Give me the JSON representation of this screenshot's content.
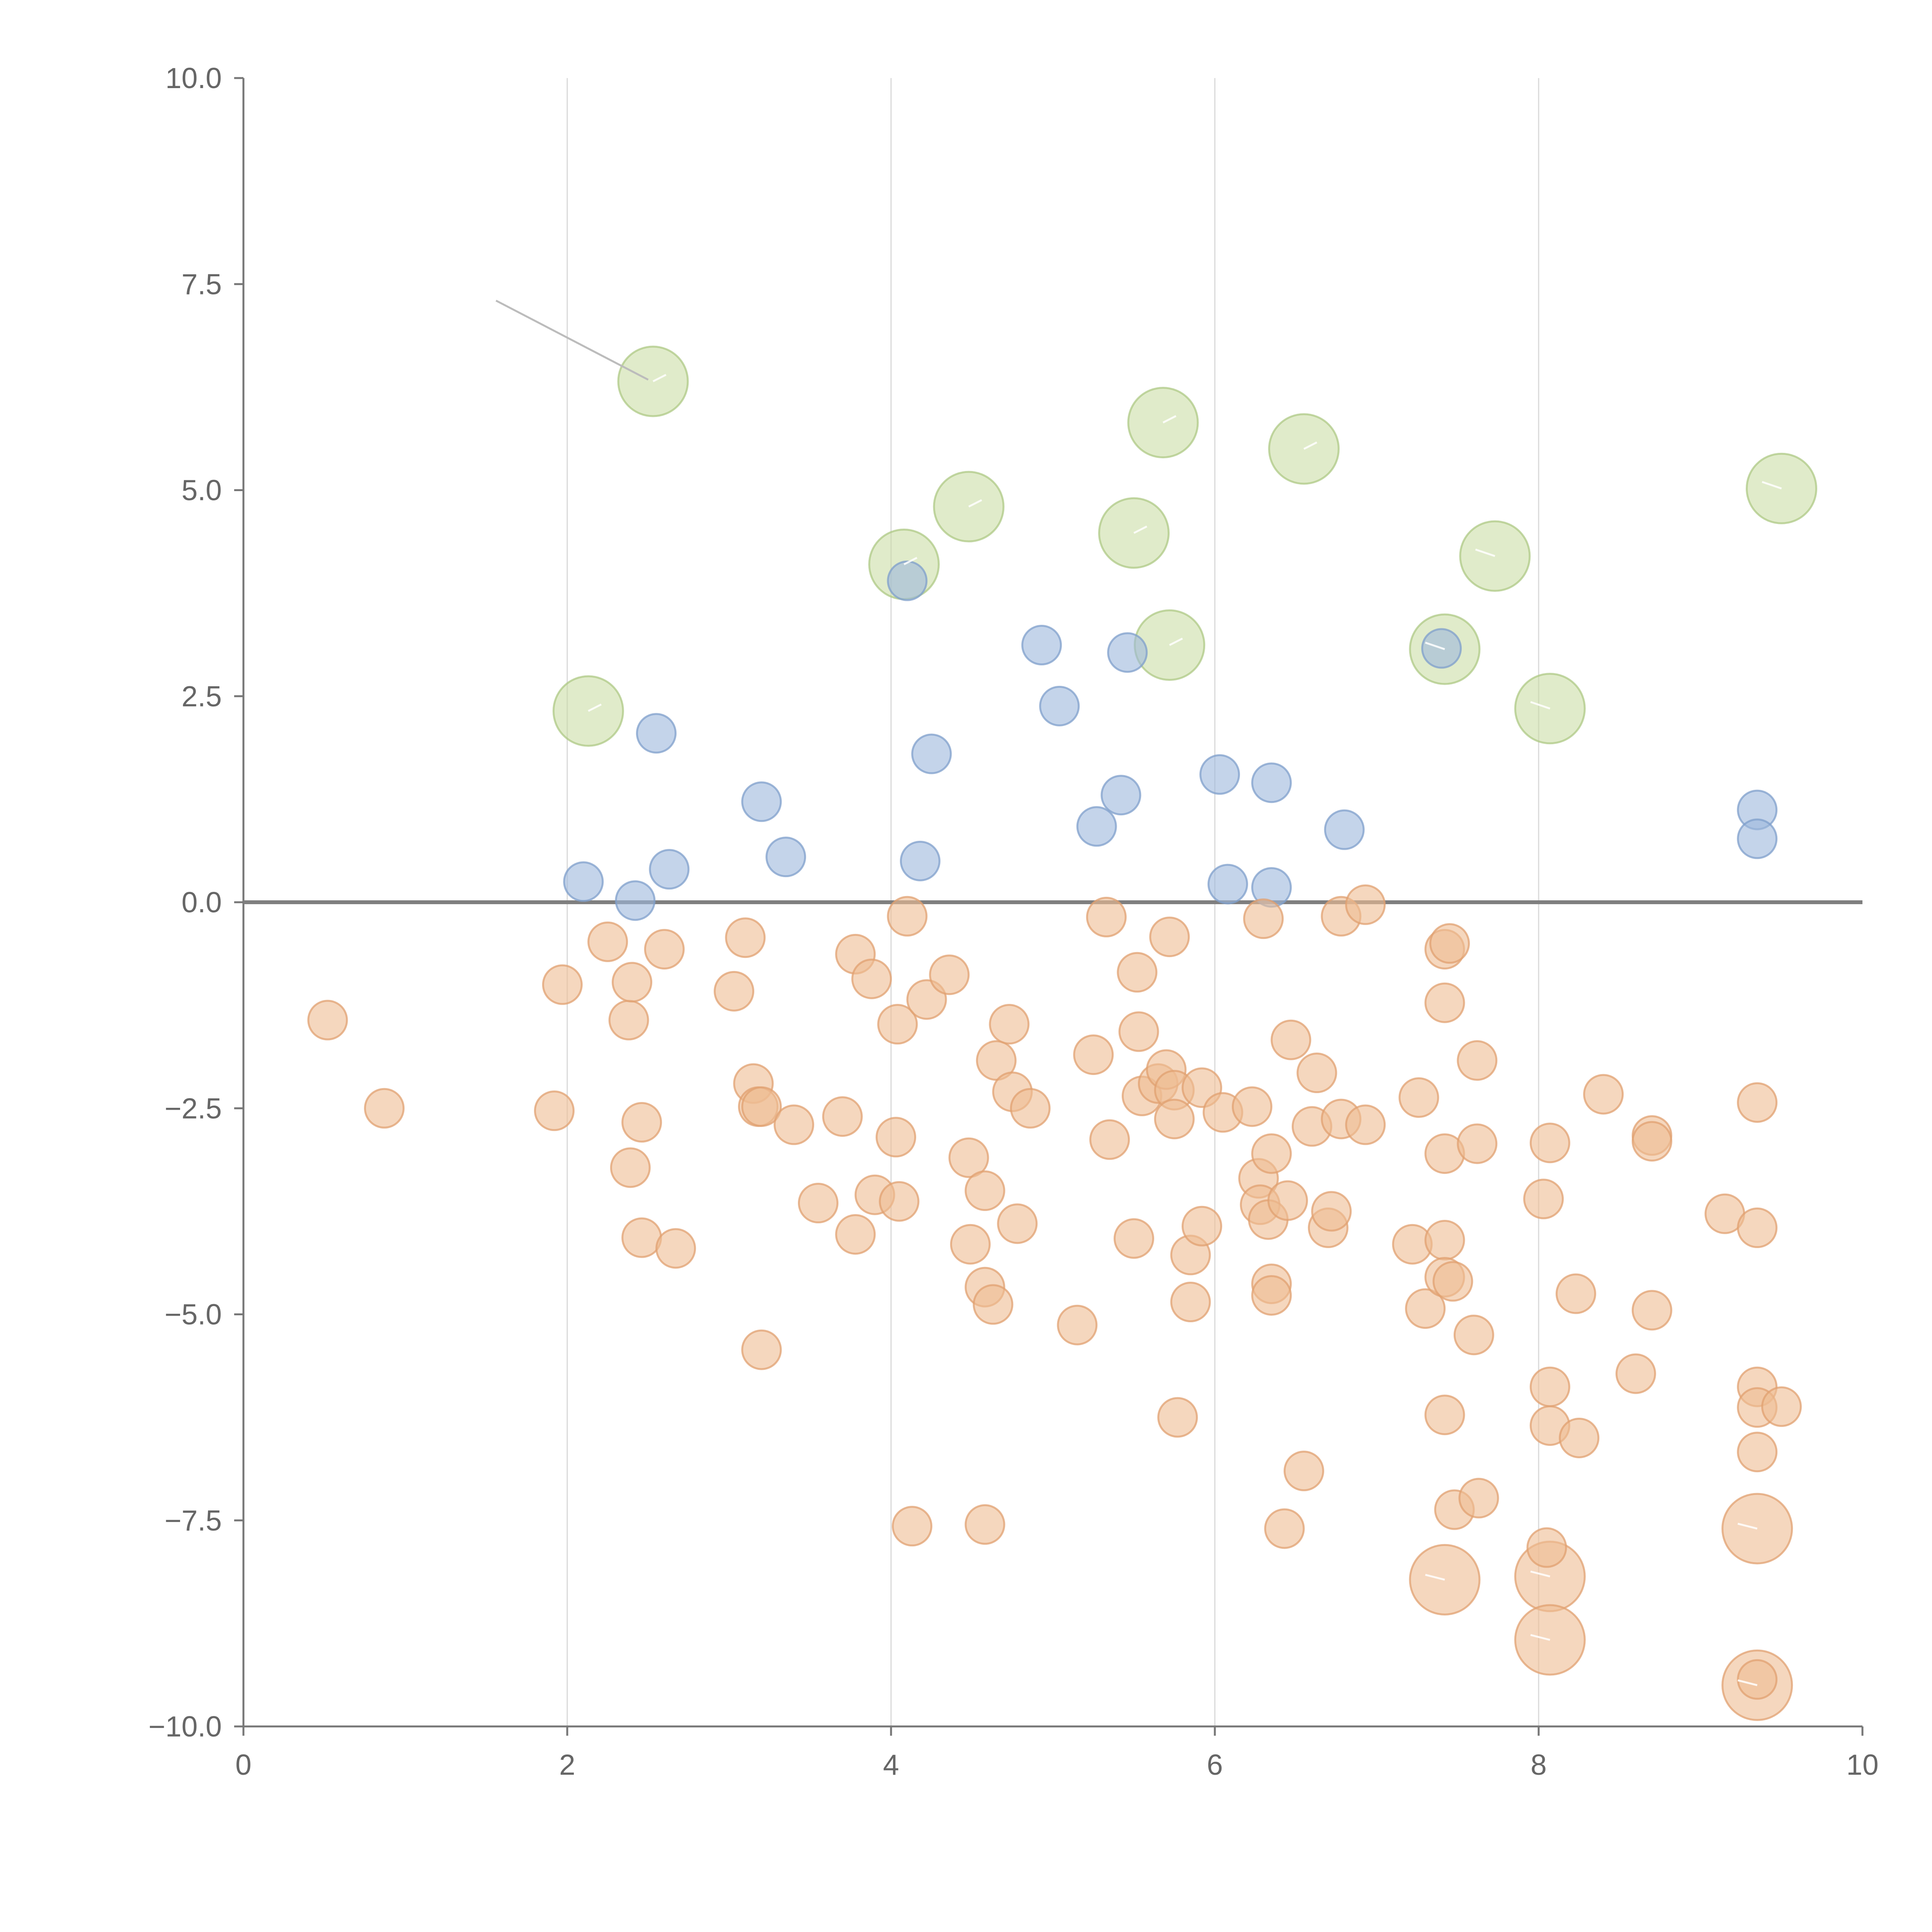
{
  "colors": {
    "positive": "#9db7dc",
    "positive_stroke": "#7f9fcb",
    "negative": "#efbc93",
    "negative_stroke": "#e0a070",
    "large": "#c8dca1",
    "large_stroke": "#a9c67f",
    "axis": "#777777",
    "grid": "#d9d9d9",
    "text": "#666666"
  },
  "chart_data": {
    "type": "scatter",
    "title": "",
    "xlabel": "",
    "ylabel": "",
    "xlim": [
      0,
      10
    ],
    "ylim": [
      -10,
      10
    ],
    "x_ticks": [
      "0",
      "2",
      "4",
      "6",
      "8",
      "10"
    ],
    "y_ticks": [
      "10.0",
      "7.5",
      "5.0",
      "2.5",
      "0.0",
      "−2.5",
      "−5.0",
      "−7.5",
      "−10.0"
    ],
    "grid": "vertical",
    "reference_line_y": 0,
    "series": [
      {
        "group": "positive",
        "size": "small",
        "points": [
          [
            2.1,
            0.25
          ],
          [
            2.42,
            0.02
          ],
          [
            2.55,
            2.05
          ],
          [
            2.63,
            0.4
          ],
          [
            3.2,
            1.22
          ],
          [
            3.35,
            0.55
          ],
          [
            4.1,
            3.9
          ],
          [
            4.18,
            0.5
          ],
          [
            4.25,
            1.8
          ],
          [
            4.93,
            3.12
          ],
          [
            5.04,
            2.38
          ],
          [
            5.27,
            0.92
          ],
          [
            5.42,
            1.3
          ],
          [
            5.46,
            3.03
          ],
          [
            6.03,
            1.55
          ],
          [
            6.08,
            0.22
          ],
          [
            6.35,
            1.45
          ],
          [
            6.35,
            0.18
          ],
          [
            6.8,
            0.88
          ],
          [
            7.4,
            3.08
          ],
          [
            9.35,
            1.12
          ],
          [
            9.35,
            0.77
          ]
        ]
      },
      {
        "group": "negative",
        "size": "small",
        "points": [
          [
            0.52,
            -1.43
          ],
          [
            0.87,
            -2.5
          ],
          [
            1.92,
            -2.53
          ],
          [
            1.97,
            -1.0
          ],
          [
            2.25,
            -0.48
          ],
          [
            2.38,
            -1.43
          ],
          [
            2.4,
            -0.97
          ],
          [
            2.39,
            -3.22
          ],
          [
            2.46,
            -2.67
          ],
          [
            2.46,
            -4.07
          ],
          [
            2.6,
            -0.57
          ],
          [
            2.67,
            -4.2
          ],
          [
            3.03,
            -1.08
          ],
          [
            3.1,
            -0.43
          ],
          [
            3.15,
            -2.2
          ],
          [
            3.18,
            -2.48
          ],
          [
            3.2,
            -2.48
          ],
          [
            3.2,
            -5.43
          ],
          [
            3.4,
            -2.7
          ],
          [
            3.55,
            -3.65
          ],
          [
            3.7,
            -2.6
          ],
          [
            3.78,
            -4.03
          ],
          [
            3.78,
            -0.63
          ],
          [
            3.88,
            -0.93
          ],
          [
            3.9,
            -3.55
          ],
          [
            4.03,
            -2.85
          ],
          [
            4.04,
            -1.48
          ],
          [
            4.05,
            -3.63
          ],
          [
            4.1,
            -0.17
          ],
          [
            4.13,
            -7.57
          ],
          [
            4.22,
            -1.18
          ],
          [
            4.36,
            -0.88
          ],
          [
            4.48,
            -3.1
          ],
          [
            4.49,
            -4.15
          ],
          [
            4.58,
            -4.67
          ],
          [
            4.58,
            -3.5
          ],
          [
            4.58,
            -7.55
          ],
          [
            4.63,
            -4.88
          ],
          [
            4.65,
            -1.92
          ],
          [
            4.73,
            -1.48
          ],
          [
            4.75,
            -2.3
          ],
          [
            4.78,
            -3.9
          ],
          [
            4.86,
            -2.5
          ],
          [
            5.15,
            -5.13
          ],
          [
            5.25,
            -1.85
          ],
          [
            5.33,
            -0.18
          ],
          [
            5.35,
            -2.88
          ],
          [
            5.5,
            -4.08
          ],
          [
            5.52,
            -0.85
          ],
          [
            5.53,
            -1.57
          ],
          [
            5.55,
            -2.35
          ],
          [
            5.65,
            -2.2
          ],
          [
            5.7,
            -2.03
          ],
          [
            5.72,
            -0.42
          ],
          [
            5.75,
            -2.28
          ],
          [
            5.75,
            -2.63
          ],
          [
            5.77,
            -6.25
          ],
          [
            5.85,
            -4.28
          ],
          [
            5.85,
            -4.85
          ],
          [
            5.92,
            -2.25
          ],
          [
            5.92,
            -3.93
          ],
          [
            6.05,
            -2.55
          ],
          [
            6.23,
            -2.48
          ],
          [
            6.27,
            -3.35
          ],
          [
            6.28,
            -3.67
          ],
          [
            6.3,
            -0.2
          ],
          [
            6.33,
            -3.85
          ],
          [
            6.35,
            -3.05
          ],
          [
            6.35,
            -4.63
          ],
          [
            6.35,
            -4.77
          ],
          [
            6.43,
            -7.6
          ],
          [
            6.45,
            -3.62
          ],
          [
            6.47,
            -1.67
          ],
          [
            6.55,
            -6.9
          ],
          [
            6.6,
            -2.72
          ],
          [
            6.63,
            -2.07
          ],
          [
            6.7,
            -3.95
          ],
          [
            6.72,
            -3.75
          ],
          [
            6.78,
            -2.63
          ],
          [
            6.78,
            -0.17
          ],
          [
            6.93,
            -2.7
          ],
          [
            6.93,
            -0.03
          ],
          [
            7.22,
            -4.15
          ],
          [
            7.26,
            -2.37
          ],
          [
            7.3,
            -4.93
          ],
          [
            7.42,
            -0.57
          ],
          [
            7.42,
            -1.22
          ],
          [
            7.42,
            -3.05
          ],
          [
            7.42,
            -4.1
          ],
          [
            7.42,
            -4.55
          ],
          [
            7.42,
            -6.22
          ],
          [
            7.45,
            -0.5
          ],
          [
            7.47,
            -4.6
          ],
          [
            7.48,
            -7.37
          ],
          [
            7.6,
            -5.25
          ],
          [
            7.62,
            -1.92
          ],
          [
            7.62,
            -2.93
          ],
          [
            7.63,
            -7.23
          ],
          [
            8.03,
            -3.6
          ],
          [
            8.05,
            -7.83
          ],
          [
            8.07,
            -2.92
          ],
          [
            8.07,
            -5.88
          ],
          [
            8.07,
            -6.35
          ],
          [
            8.23,
            -4.75
          ],
          [
            8.25,
            -6.5
          ],
          [
            8.4,
            -2.33
          ],
          [
            8.6,
            -5.72
          ],
          [
            8.7,
            -2.83
          ],
          [
            8.7,
            -2.9
          ],
          [
            8.7,
            -4.95
          ],
          [
            9.15,
            -3.78
          ],
          [
            9.35,
            -2.43
          ],
          [
            9.35,
            -3.95
          ],
          [
            9.35,
            -5.88
          ],
          [
            9.35,
            -6.13
          ],
          [
            9.35,
            -6.67
          ],
          [
            9.35,
            -9.43
          ],
          [
            9.5,
            -6.12
          ]
        ]
      },
      {
        "group": "negative",
        "size": "large",
        "points": [
          [
            7.42,
            -8.22
          ],
          [
            8.07,
            -8.18
          ],
          [
            8.07,
            -8.95
          ],
          [
            9.35,
            -7.6
          ],
          [
            9.35,
            -9.5
          ]
        ]
      },
      {
        "group": "large",
        "size": "large",
        "points": [
          [
            2.53,
            6.32
          ],
          [
            2.13,
            2.32
          ],
          [
            4.08,
            4.1
          ],
          [
            4.48,
            4.8
          ],
          [
            5.5,
            4.48
          ],
          [
            5.68,
            5.82
          ],
          [
            5.72,
            3.12
          ],
          [
            6.55,
            5.5
          ],
          [
            7.42,
            3.07
          ],
          [
            7.73,
            4.2
          ],
          [
            8.07,
            2.35
          ],
          [
            9.5,
            5.02
          ]
        ]
      }
    ]
  }
}
